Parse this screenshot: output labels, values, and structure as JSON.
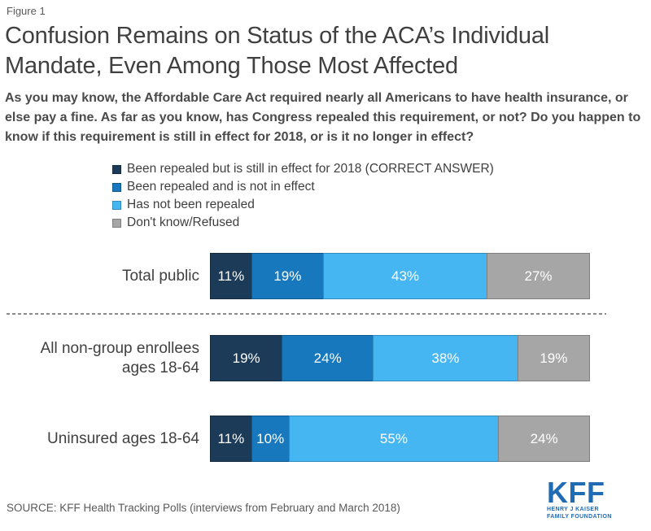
{
  "figure_label": "Figure 1",
  "title": "Confusion Remains on Status of the ACA’s Individual Mandate, Even Among Those Most Affected",
  "subtitle": "As you may know, the Affordable Care Act required nearly all Americans to have health insurance, or else pay a fine. As far as you know, has Congress repealed this requirement, or not? Do you happen to know if this requirement is still in effect for 2018, or is it no longer in effect?",
  "chart_data": {
    "type": "bar",
    "variant": "horizontal-stacked",
    "title": "Confusion Remains on Status of the ACA’s Individual Mandate, Even Among Those Most Affected",
    "categories": [
      "Total public",
      "All non-group enrollees ages 18-64",
      "Uninsured ages 18-64"
    ],
    "series": [
      {
        "name": "Been repealed but is still in effect for 2018 (CORRECT ANSWER)",
        "color": "#1c3b59",
        "border": "#12293f",
        "values": [
          11,
          19,
          11
        ]
      },
      {
        "name": "Been repealed and is not in effect",
        "color": "#1878be",
        "border": "#10588c",
        "values": [
          19,
          24,
          10
        ]
      },
      {
        "name": "Has not been repealed",
        "color": "#45b6f2",
        "border": "#2e8cc0",
        "values": [
          43,
          38,
          55
        ]
      },
      {
        "name": "Don't know/Refused",
        "color": "#a6a6a6",
        "border": "#7f7f7f",
        "values": [
          27,
          19,
          24
        ]
      }
    ],
    "value_suffix": "%",
    "xlim": [
      0,
      100
    ],
    "grid": false,
    "legend_position": "top-left",
    "separator_after_category_index": 0
  },
  "source": "SOURCE: KFF Health Tracking Polls (interviews from February and March 2018)",
  "logo": {
    "text": "KFF",
    "line1": "HENRY J KAISER",
    "line2": "FAMILY FOUNDATION",
    "color": "#1f6cb4"
  }
}
